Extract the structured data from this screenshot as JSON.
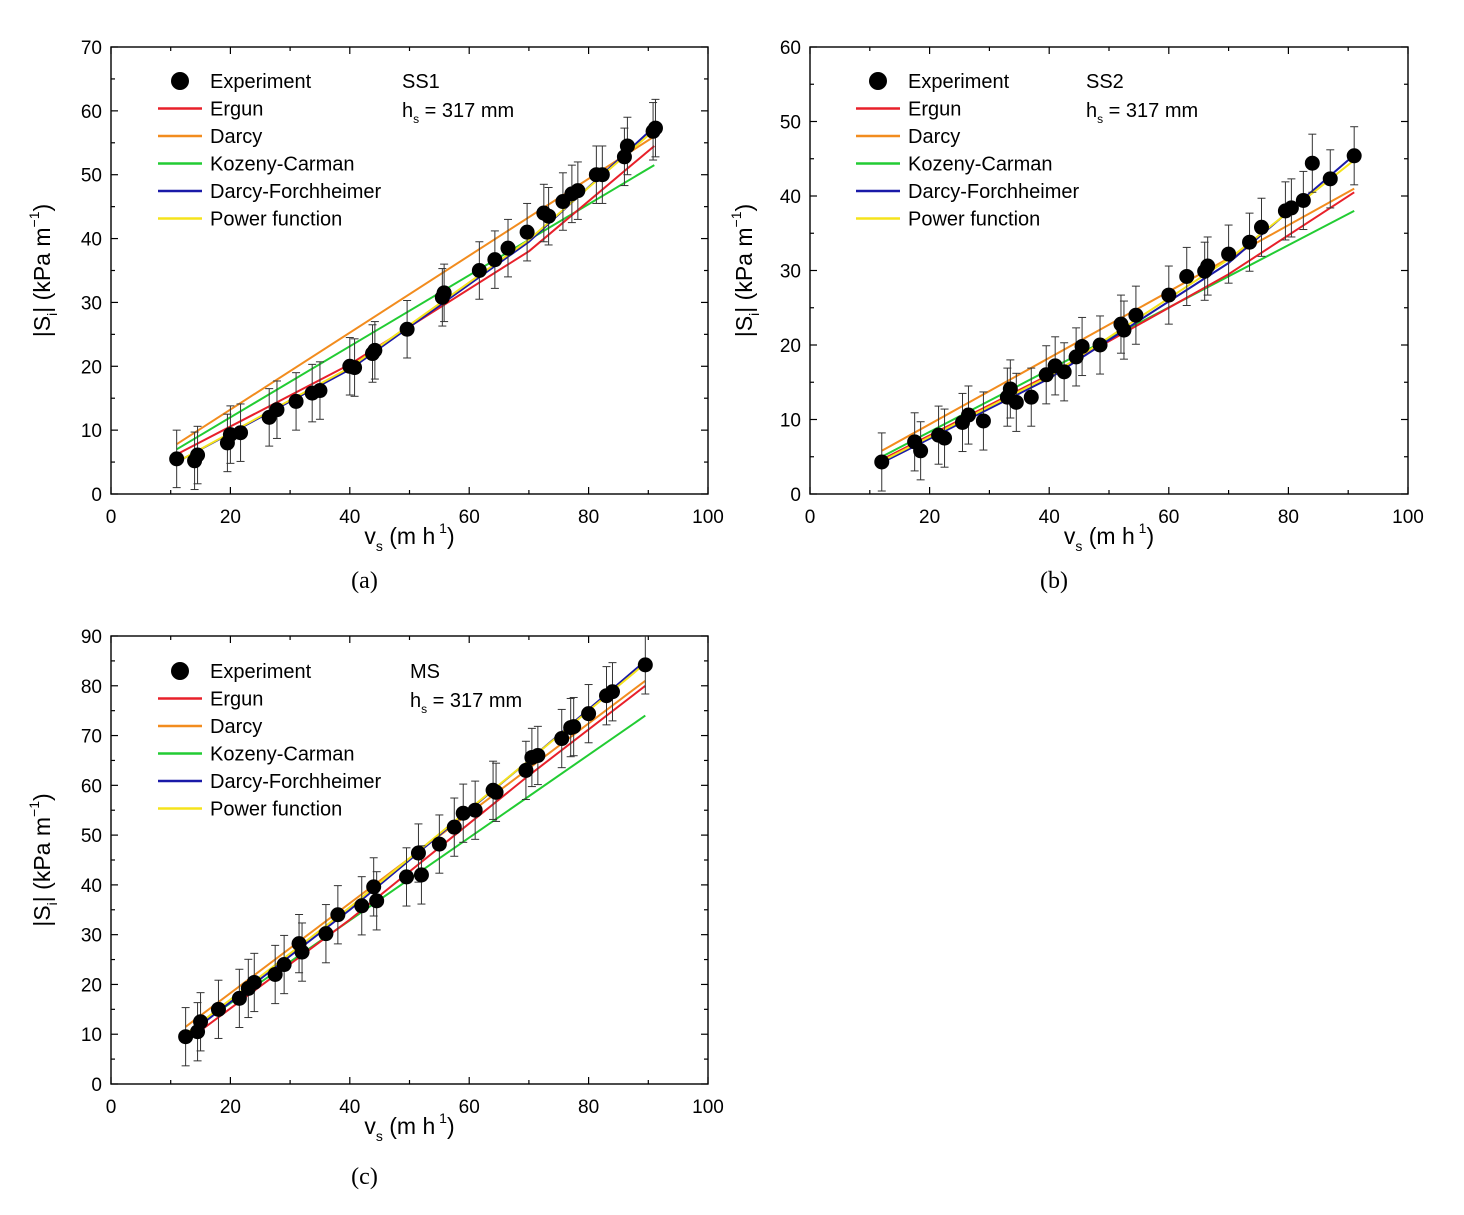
{
  "colors": {
    "Ergun": "#e8202a",
    "Darcy": "#f28c1e",
    "Kozeny-Carman": "#22cc33",
    "Darcy-Forchheimer": "#1a1aa8",
    "Power function": "#f5e31c",
    "points": "#000000"
  },
  "chart_data": [
    {
      "id": "a",
      "type": "scatter",
      "panel_label": "(a)",
      "annotation": {
        "sample": "SS1",
        "hs_prefix": "h",
        "hs_sub": "s",
        "hs_value": "= 317 mm"
      },
      "xlabel": {
        "main": "v",
        "sub": "s",
        "unit": "(m h",
        "sup": "1",
        "close": ")"
      },
      "ylabel": {
        "pre": "|S",
        "sub": "i",
        "post": "|  (kPa m",
        "sup": "−1",
        "close": ")"
      },
      "xlim": [
        0,
        100
      ],
      "ylim": [
        0,
        70
      ],
      "xticks": [
        0,
        20,
        40,
        60,
        80,
        100
      ],
      "yticks": [
        0,
        10,
        20,
        30,
        40,
        50,
        60,
        70
      ],
      "legend": [
        "Experiment",
        "Ergun",
        "Darcy",
        "Kozeny-Carman",
        "Darcy-Forchheimer",
        "Power function"
      ],
      "experiment": {
        "x": [
          11,
          14,
          14.5,
          19.5,
          20,
          21.7,
          26.5,
          27.8,
          31,
          33.7,
          35,
          40,
          40.8,
          43.8,
          44.2,
          49.6,
          55.5,
          55.8,
          61.7,
          64.3,
          66.5,
          69.7,
          72.5,
          73.3,
          75.7,
          77.2,
          78.2,
          81.3,
          82.3,
          86,
          86.5,
          90.8,
          91.2
        ],
        "y": [
          5.5,
          5.2,
          6.1,
          8.0,
          9.3,
          9.6,
          12.0,
          13.2,
          14.5,
          15.8,
          16.2,
          20.0,
          19.8,
          22.0,
          22.5,
          25.8,
          30.8,
          31.5,
          35.0,
          36.7,
          38.5,
          41.0,
          44.0,
          43.5,
          45.8,
          47.0,
          47.5,
          50.0,
          50.0,
          52.8,
          54.5,
          56.8,
          57.3
        ],
        "err": [
          4.5,
          4.5,
          4.5,
          4.5,
          4.5,
          4.5,
          4.5,
          4.5,
          4.5,
          4.5,
          4.5,
          4.5,
          4.5,
          4.5,
          4.5,
          4.5,
          4.5,
          4.5,
          4.5,
          4.5,
          4.5,
          4.5,
          4.5,
          4.5,
          4.5,
          4.5,
          4.5,
          4.5,
          4.5,
          4.5,
          4.5,
          4.5,
          4.5
        ]
      },
      "models": [
        {
          "name": "Kozeny-Carman",
          "x": [
            11,
            91
          ],
          "y": [
            7.0,
            51.5
          ]
        },
        {
          "name": "Ergun",
          "x": [
            11,
            40,
            70,
            91
          ],
          "y": [
            6.2,
            20.3,
            38.0,
            54.5
          ]
        },
        {
          "name": "Darcy",
          "x": [
            11,
            91
          ],
          "y": [
            7.8,
            56.0
          ]
        },
        {
          "name": "Darcy-Forchheimer",
          "x": [
            11,
            40,
            70,
            91
          ],
          "y": [
            5.0,
            19.5,
            39.5,
            57.5
          ]
        },
        {
          "name": "Power function",
          "x": [
            11,
            40,
            70,
            91
          ],
          "y": [
            5.0,
            19.8,
            39.8,
            57.0
          ]
        }
      ]
    },
    {
      "id": "b",
      "type": "scatter",
      "panel_label": "(b)",
      "annotation": {
        "sample": "SS2",
        "hs_prefix": "h",
        "hs_sub": "s",
        "hs_value": "= 317 mm"
      },
      "xlabel": {
        "main": "v",
        "sub": "s",
        "unit": "(m h",
        "sup": "1",
        "close": ")"
      },
      "ylabel": {
        "pre": "|S",
        "sub": "i",
        "post": "|  (kPa m",
        "sup": "−1",
        "close": ")"
      },
      "xlim": [
        0,
        100
      ],
      "ylim": [
        0,
        60
      ],
      "xticks": [
        0,
        20,
        40,
        60,
        80,
        100
      ],
      "yticks": [
        0,
        10,
        20,
        30,
        40,
        50,
        60
      ],
      "legend": [
        "Experiment",
        "Ergun",
        "Darcy",
        "Kozeny-Carman",
        "Darcy-Forchheimer",
        "Power function"
      ],
      "experiment": {
        "x": [
          12,
          17.5,
          18.5,
          21.5,
          22.5,
          25.5,
          26.5,
          29,
          33,
          33.5,
          34.5,
          37,
          39.5,
          41,
          42.5,
          44.5,
          45.5,
          48.5,
          52,
          52.5,
          54.5,
          60,
          63,
          66,
          66.5,
          70,
          73.5,
          75.5,
          79.5,
          80.5,
          82.5,
          84,
          87,
          91
        ],
        "y": [
          4.3,
          7.0,
          5.8,
          7.9,
          7.5,
          9.6,
          10.6,
          9.8,
          13.0,
          14.1,
          12.3,
          13.0,
          16.0,
          17.2,
          16.4,
          18.4,
          19.8,
          20.0,
          22.8,
          22.0,
          24.0,
          26.7,
          29.2,
          29.9,
          30.6,
          32.2,
          33.8,
          35.8,
          38.0,
          38.4,
          39.4,
          44.4,
          42.3,
          45.4
        ]
      },
      "models": [
        {
          "name": "Kozeny-Carman",
          "x": [
            12,
            91
          ],
          "y": [
            5.0,
            38.0
          ]
        },
        {
          "name": "Ergun",
          "x": [
            12,
            40,
            70,
            91
          ],
          "y": [
            4.6,
            16.0,
            29.5,
            40.5
          ]
        },
        {
          "name": "Darcy",
          "x": [
            12,
            91
          ],
          "y": [
            5.8,
            41.0
          ]
        },
        {
          "name": "Darcy-Forchheimer",
          "x": [
            12,
            40,
            70,
            91
          ],
          "y": [
            4.2,
            15.5,
            31.0,
            45.5
          ]
        },
        {
          "name": "Power function",
          "x": [
            12,
            40,
            70,
            91
          ],
          "y": [
            4.4,
            15.8,
            31.5,
            44.8
          ]
        }
      ]
    },
    {
      "id": "c",
      "type": "scatter",
      "panel_label": "(c)",
      "annotation": {
        "sample": "MS",
        "hs_prefix": "h",
        "hs_sub": "s",
        "hs_value": "= 317 mm"
      },
      "xlabel": {
        "main": "v",
        "sub": "s",
        "unit": "(m h",
        "sup": "1",
        "close": ")"
      },
      "ylabel": {
        "pre": "|S",
        "sub": "i",
        "post": "|  (kPa m",
        "sup": "−1",
        "close": ")"
      },
      "xlim": [
        0,
        100
      ],
      "ylim": [
        0,
        90
      ],
      "xticks": [
        0,
        20,
        40,
        60,
        80,
        100
      ],
      "yticks": [
        0,
        10,
        20,
        30,
        40,
        50,
        60,
        70,
        80,
        90
      ],
      "legend": [
        "Experiment",
        "Ergun",
        "Darcy",
        "Kozeny-Carman",
        "Darcy-Forchheimer",
        "Power function"
      ],
      "experiment": {
        "x": [
          12.5,
          14.5,
          15,
          18,
          21.5,
          23,
          24,
          27.5,
          29,
          31.5,
          32,
          36,
          38,
          42,
          44,
          44.5,
          49.5,
          51.5,
          52,
          55,
          57.5,
          59,
          61,
          64,
          64.5,
          69.5,
          70.5,
          71.5,
          75.5,
          77,
          77.5,
          80,
          83,
          84,
          89.5
        ],
        "y": [
          9.5,
          10.5,
          12.5,
          15.0,
          17.2,
          19.2,
          20.4,
          22.0,
          24.0,
          28.2,
          26.5,
          30.2,
          34.0,
          35.8,
          39.6,
          36.8,
          41.6,
          46.4,
          42.0,
          48.2,
          51.6,
          54.4,
          55.0,
          59.0,
          58.6,
          63.0,
          65.6,
          66.0,
          69.4,
          71.6,
          71.8,
          74.4,
          78.0,
          78.8,
          84.2
        ]
      },
      "models": [
        {
          "name": "Kozeny-Carman",
          "x": [
            12.5,
            89.5
          ],
          "y": [
            10.0,
            74.0
          ]
        },
        {
          "name": "Ergun",
          "x": [
            12.5,
            40,
            70,
            89.5
          ],
          "y": [
            8.5,
            33.0,
            62.0,
            80.0
          ]
        },
        {
          "name": "Darcy",
          "x": [
            12.5,
            89.5
          ],
          "y": [
            11.5,
            81.0
          ]
        },
        {
          "name": "Darcy-Forchheimer",
          "x": [
            12.5,
            40,
            70,
            89.5
          ],
          "y": [
            9.5,
            35.0,
            65.0,
            85.0
          ]
        },
        {
          "name": "Power function",
          "x": [
            12.5,
            40,
            70,
            89.5
          ],
          "y": [
            10.0,
            35.5,
            65.0,
            84.5
          ]
        }
      ]
    }
  ]
}
